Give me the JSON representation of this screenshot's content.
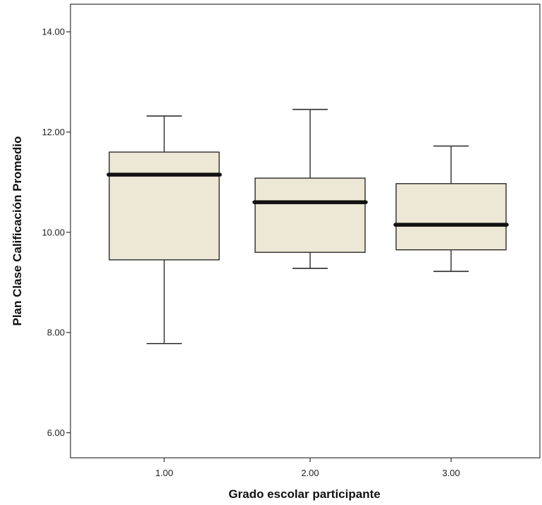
{
  "chart_data": {
    "type": "boxplot",
    "title": "",
    "xlabel": "Grado escolar participante",
    "ylabel": "Plan Clase Calificación Promedio",
    "categories": [
      "1.00",
      "2.00",
      "3.00"
    ],
    "y_ticks": [
      "6.00",
      "8.00",
      "10.00",
      "12.00",
      "14.00"
    ],
    "ylim": [
      5.5,
      14.55
    ],
    "grid": false,
    "legend": "none",
    "boxes": [
      {
        "category": "1.00",
        "whisker_low": 7.78,
        "q1": 9.45,
        "median": 11.15,
        "q3": 11.6,
        "whisker_high": 12.32
      },
      {
        "category": "2.00",
        "whisker_low": 9.28,
        "q1": 9.6,
        "median": 10.6,
        "q3": 11.08,
        "whisker_high": 12.45
      },
      {
        "category": "3.00",
        "whisker_low": 9.22,
        "q1": 9.65,
        "median": 10.15,
        "q3": 10.97,
        "whisker_high": 11.72
      }
    ],
    "colors": {
      "box_fill": "#ede8d6",
      "box_stroke": "#2a2a2a",
      "median": "#111111",
      "axis": "#333333"
    }
  }
}
